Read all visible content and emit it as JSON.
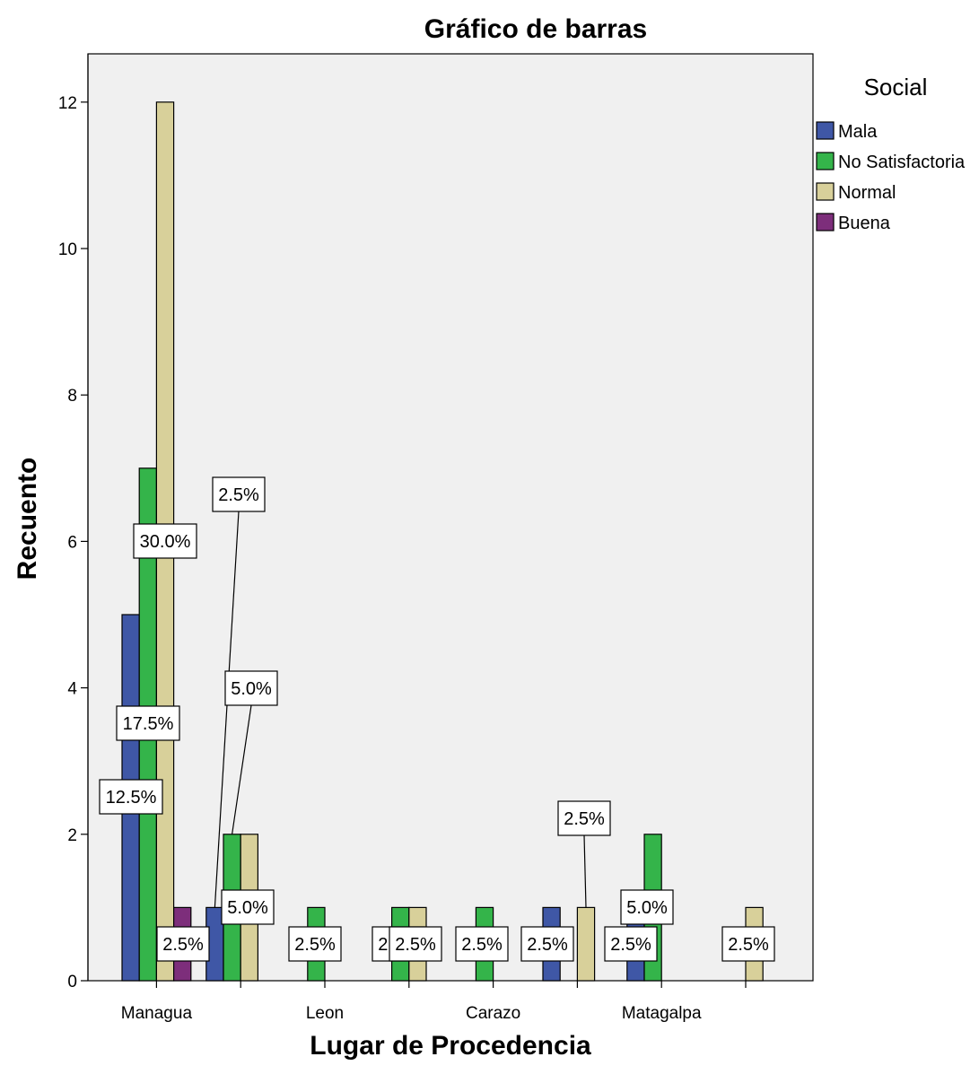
{
  "chart_data": {
    "type": "bar",
    "title": "Gráfico de barras",
    "xlabel": "Lugar de Procedencia",
    "ylabel": "Recuento",
    "ylim": [
      0,
      13
    ],
    "yticks": [
      "0",
      "2",
      "4",
      "6",
      "8",
      "10",
      "12"
    ],
    "grid": false,
    "legend_title": "Social",
    "legend_position": "top-right",
    "group_labels": [
      "Managua",
      "",
      "Leon",
      "",
      "Carazo",
      "",
      "Matagalpa",
      ""
    ],
    "series": [
      {
        "name": "Mala",
        "color": "#3f57a6"
      },
      {
        "name": "No Satisfactoria",
        "color": "#34b44a"
      },
      {
        "name": "Normal",
        "color": "#d8d09a"
      },
      {
        "name": "Buena",
        "color": "#7d2e7b"
      }
    ],
    "bars": [
      {
        "group": 0,
        "series": 0,
        "value": 5
      },
      {
        "group": 0,
        "series": 1,
        "value": 7
      },
      {
        "group": 0,
        "series": 2,
        "value": 12
      },
      {
        "group": 0,
        "series": 3,
        "value": 1
      },
      {
        "group": 1,
        "series": 0,
        "value": 1
      },
      {
        "group": 1,
        "series": 1,
        "value": 2
      },
      {
        "group": 1,
        "series": 2,
        "value": 2
      },
      {
        "group": 2,
        "series": 1,
        "value": 1
      },
      {
        "group": 3,
        "series": 1,
        "value": 1
      },
      {
        "group": 3,
        "series": 2,
        "value": 1
      },
      {
        "group": 4,
        "series": 1,
        "value": 1
      },
      {
        "group": 5,
        "series": 0,
        "value": 1
      },
      {
        "group": 5,
        "series": 2,
        "value": 1
      },
      {
        "group": 6,
        "series": 0,
        "value": 1
      },
      {
        "group": 6,
        "series": 1,
        "value": 2
      },
      {
        "group": 7,
        "series": 2,
        "value": 1
      }
    ],
    "data_labels": [
      {
        "text": "12.5%",
        "group": 0,
        "series": 0
      },
      {
        "text": "17.5%",
        "group": 0,
        "series": 1
      },
      {
        "text": "30.0%",
        "group": 0,
        "series": 2
      },
      {
        "text": "2.5%",
        "group": 0,
        "series": 3
      },
      {
        "text": "2.5%",
        "group": 1,
        "series": 0
      },
      {
        "text": "5.0%",
        "group": 1,
        "series": 1
      },
      {
        "text": "5.0%",
        "group": 1,
        "series": 2
      },
      {
        "text": "2.5%",
        "group": 2,
        "series": 1
      },
      {
        "text": "2.5%",
        "group": 3,
        "series": 1
      },
      {
        "text": "2.5%",
        "group": 3,
        "series": 2
      },
      {
        "text": "2.5%",
        "group": 4,
        "series": 1
      },
      {
        "text": "2.5%",
        "group": 5,
        "series": 0
      },
      {
        "text": "2.5%",
        "group": 5,
        "series": 2
      },
      {
        "text": "2.5%",
        "group": 6,
        "series": 0
      },
      {
        "text": "5.0%",
        "group": 6,
        "series": 1
      },
      {
        "text": "2.5%",
        "group": 7,
        "series": 2
      }
    ]
  }
}
